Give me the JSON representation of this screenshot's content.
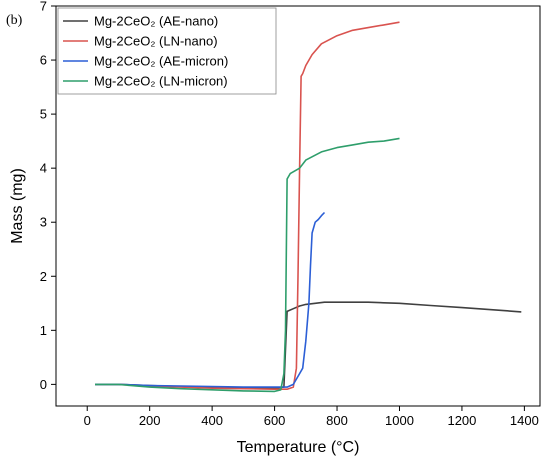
{
  "chart_data": {
    "type": "line",
    "panel_label": "(b)",
    "title": "",
    "xlabel": "Temperature (°C)",
    "ylabel": "Mass (mg)",
    "xlim": [
      -100,
      1450
    ],
    "ylim": [
      -0.4,
      7
    ],
    "x_ticks": [
      0,
      200,
      400,
      600,
      800,
      1000,
      1200,
      1400
    ],
    "y_ticks": [
      0,
      1,
      2,
      3,
      4,
      5,
      6,
      7
    ],
    "grid": false,
    "legend_position": "top-left",
    "series": [
      {
        "name": "Mg-2CeO₂ (AE-nano)",
        "color": "#404040",
        "x": [
          25,
          100,
          200,
          300,
          400,
          500,
          600,
          630,
          640,
          660,
          680,
          700,
          730,
          760,
          800,
          850,
          900,
          950,
          1000,
          1100,
          1200,
          1300,
          1390
        ],
        "y": [
          0.0,
          0.0,
          -0.02,
          -0.04,
          -0.05,
          -0.06,
          -0.07,
          -0.05,
          1.35,
          1.4,
          1.45,
          1.48,
          1.5,
          1.52,
          1.52,
          1.52,
          1.52,
          1.51,
          1.5,
          1.46,
          1.42,
          1.38,
          1.34
        ]
      },
      {
        "name": "Mg-2CeO₂ (LN-nano)",
        "color": "#d9534f",
        "x": [
          25,
          100,
          200,
          300,
          400,
          500,
          600,
          640,
          660,
          670,
          675,
          680,
          685,
          690,
          700,
          720,
          750,
          800,
          850,
          900,
          950,
          1000
        ],
        "y": [
          0.0,
          0.0,
          -0.03,
          -0.05,
          -0.07,
          -0.08,
          -0.09,
          -0.09,
          -0.05,
          0.3,
          2.0,
          4.0,
          5.7,
          5.75,
          5.9,
          6.1,
          6.3,
          6.45,
          6.55,
          6.6,
          6.65,
          6.7
        ]
      },
      {
        "name": "Mg-2CeO₂ (AE-micron)",
        "color": "#2c5fd6",
        "x": [
          25,
          100,
          200,
          300,
          400,
          500,
          600,
          640,
          660,
          680,
          690,
          700,
          710,
          715,
          720,
          730,
          740,
          750,
          760
        ],
        "y": [
          0.0,
          0.0,
          -0.02,
          -0.03,
          -0.04,
          -0.05,
          -0.05,
          -0.05,
          0.0,
          0.2,
          0.3,
          0.8,
          1.5,
          2.2,
          2.8,
          3.0,
          3.05,
          3.12,
          3.18
        ]
      },
      {
        "name": "Mg-2CeO₂ (LN-micron)",
        "color": "#2e9e6b",
        "x": [
          25,
          100,
          200,
          300,
          400,
          500,
          600,
          620,
          630,
          635,
          640,
          650,
          680,
          700,
          750,
          800,
          850,
          900,
          950,
          1000
        ],
        "y": [
          0.0,
          0.0,
          -0.05,
          -0.08,
          -0.1,
          -0.12,
          -0.13,
          -0.1,
          0.2,
          1.0,
          3.8,
          3.9,
          4.0,
          4.15,
          4.3,
          4.38,
          4.43,
          4.48,
          4.5,
          4.55
        ]
      }
    ]
  }
}
